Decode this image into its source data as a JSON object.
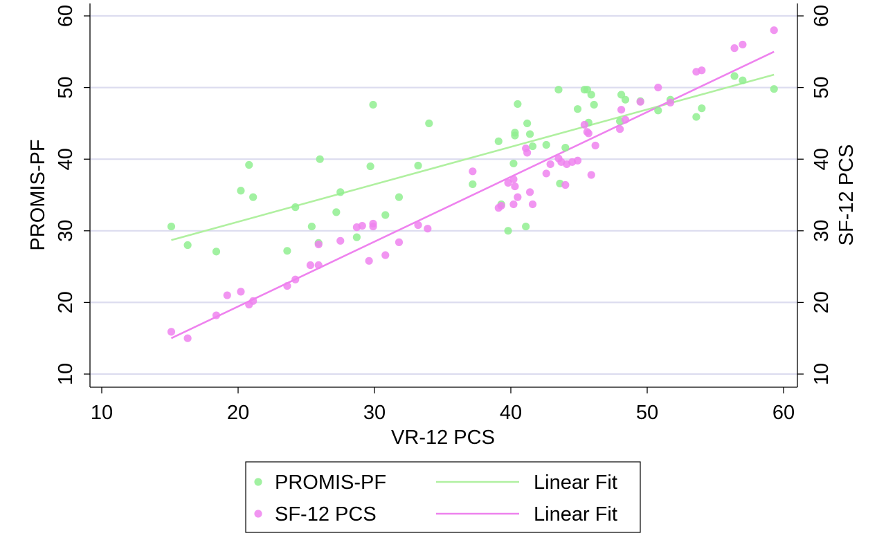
{
  "chart_data": {
    "type": "scatter",
    "xlabel": "VR-12 PCS",
    "ylabel": "PROMIS-PF",
    "y2label": "SF-12 PCS",
    "xlim": [
      10,
      60
    ],
    "ylim": [
      10,
      60
    ],
    "y2lim": [
      10,
      60
    ],
    "xticks": [
      "10",
      "20",
      "30",
      "40",
      "50",
      "60"
    ],
    "yticks": [
      "10",
      "20",
      "30",
      "40",
      "50",
      "60"
    ],
    "y2ticks": [
      "10",
      "20",
      "30",
      "40",
      "50",
      "60"
    ],
    "grid": "horizontal",
    "legend_position": "bottom",
    "series": [
      {
        "name": "PROMIS-PF",
        "kind": "scatter",
        "color": "#90ee90",
        "points": [
          [
            15.1,
            30.6
          ],
          [
            16.3,
            28.0
          ],
          [
            18.4,
            27.1
          ],
          [
            20.2,
            35.6
          ],
          [
            20.8,
            39.2
          ],
          [
            21.1,
            34.7
          ],
          [
            23.6,
            27.2
          ],
          [
            24.2,
            33.3
          ],
          [
            25.4,
            30.6
          ],
          [
            25.9,
            28.3
          ],
          [
            26.0,
            40.0
          ],
          [
            27.2,
            32.6
          ],
          [
            27.5,
            35.4
          ],
          [
            28.7,
            29.1
          ],
          [
            29.7,
            39.0
          ],
          [
            29.9,
            47.6
          ],
          [
            30.8,
            32.2
          ],
          [
            31.8,
            34.7
          ],
          [
            33.2,
            39.1
          ],
          [
            34.0,
            45.0
          ],
          [
            37.2,
            36.5
          ],
          [
            39.1,
            42.5
          ],
          [
            39.3,
            33.7
          ],
          [
            39.8,
            30.0
          ],
          [
            40.2,
            39.4
          ],
          [
            40.3,
            43.3
          ],
          [
            40.3,
            43.7
          ],
          [
            40.5,
            47.7
          ],
          [
            41.1,
            30.6
          ],
          [
            41.2,
            45.0
          ],
          [
            41.4,
            43.5
          ],
          [
            41.6,
            41.8
          ],
          [
            42.6,
            42.0
          ],
          [
            43.5,
            49.7
          ],
          [
            43.6,
            36.6
          ],
          [
            44.0,
            41.6
          ],
          [
            44.9,
            47.0
          ],
          [
            45.4,
            49.7
          ],
          [
            45.6,
            49.7
          ],
          [
            45.7,
            45.1
          ],
          [
            45.9,
            49.0
          ],
          [
            46.1,
            47.6
          ],
          [
            48.0,
            45.3
          ],
          [
            48.1,
            49.0
          ],
          [
            48.4,
            48.3
          ],
          [
            49.5,
            48.1
          ],
          [
            50.8,
            46.8
          ],
          [
            51.7,
            48.3
          ],
          [
            53.6,
            45.9
          ],
          [
            54.0,
            47.1
          ],
          [
            56.4,
            51.6
          ],
          [
            57.0,
            51.0
          ],
          [
            59.3,
            49.8
          ]
        ]
      },
      {
        "name": "Linear Fit",
        "kind": "line",
        "color": "#b0f0a0",
        "points": [
          [
            15.1,
            28.7
          ],
          [
            59.3,
            51.8
          ]
        ]
      },
      {
        "name": "SF-12 PCS",
        "kind": "scatter",
        "color": "#ee82ee",
        "points": [
          [
            15.1,
            15.9
          ],
          [
            16.3,
            15.0
          ],
          [
            18.4,
            18.2
          ],
          [
            19.2,
            21.0
          ],
          [
            20.2,
            21.5
          ],
          [
            20.8,
            19.7
          ],
          [
            21.1,
            20.2
          ],
          [
            23.6,
            22.3
          ],
          [
            24.2,
            23.2
          ],
          [
            25.3,
            25.2
          ],
          [
            25.9,
            28.1
          ],
          [
            25.9,
            25.2
          ],
          [
            27.5,
            28.6
          ],
          [
            28.7,
            30.5
          ],
          [
            29.1,
            30.7
          ],
          [
            29.6,
            25.8
          ],
          [
            29.9,
            30.6
          ],
          [
            29.9,
            31.0
          ],
          [
            30.8,
            26.6
          ],
          [
            31.8,
            28.4
          ],
          [
            33.2,
            30.8
          ],
          [
            33.9,
            30.3
          ],
          [
            37.2,
            38.3
          ],
          [
            39.1,
            33.2
          ],
          [
            39.3,
            33.5
          ],
          [
            39.8,
            36.7
          ],
          [
            40.2,
            37.2
          ],
          [
            40.2,
            33.7
          ],
          [
            40.3,
            36.2
          ],
          [
            40.5,
            34.7
          ],
          [
            41.1,
            41.5
          ],
          [
            41.2,
            40.9
          ],
          [
            41.4,
            35.4
          ],
          [
            41.6,
            33.7
          ],
          [
            42.6,
            38.0
          ],
          [
            42.9,
            39.3
          ],
          [
            43.5,
            40.1
          ],
          [
            43.7,
            39.6
          ],
          [
            44.0,
            36.4
          ],
          [
            44.1,
            39.3
          ],
          [
            44.5,
            39.6
          ],
          [
            44.9,
            39.8
          ],
          [
            45.4,
            44.8
          ],
          [
            45.6,
            43.8
          ],
          [
            45.7,
            43.6
          ],
          [
            45.9,
            37.8
          ],
          [
            46.2,
            41.9
          ],
          [
            48.0,
            44.2
          ],
          [
            48.1,
            46.9
          ],
          [
            48.4,
            45.5
          ],
          [
            49.5,
            48.0
          ],
          [
            50.8,
            50.0
          ],
          [
            51.7,
            47.9
          ],
          [
            53.6,
            52.2
          ],
          [
            54.0,
            52.4
          ],
          [
            56.4,
            55.5
          ],
          [
            57.0,
            56.0
          ],
          [
            59.3,
            58.0
          ]
        ]
      },
      {
        "name": "Linear Fit",
        "kind": "line",
        "color": "#ee82ee",
        "points": [
          [
            15.1,
            15.0
          ],
          [
            59.3,
            55.0
          ]
        ]
      }
    ],
    "legend": [
      {
        "label": "PROMIS-PF",
        "kind": "marker",
        "color": "#90ee90"
      },
      {
        "label": "Linear Fit",
        "kind": "line",
        "color": "#b0f0a0"
      },
      {
        "label": "SF-12 PCS",
        "kind": "marker",
        "color": "#ee82ee"
      },
      {
        "label": "Linear Fit",
        "kind": "line",
        "color": "#ee82ee"
      }
    ]
  }
}
